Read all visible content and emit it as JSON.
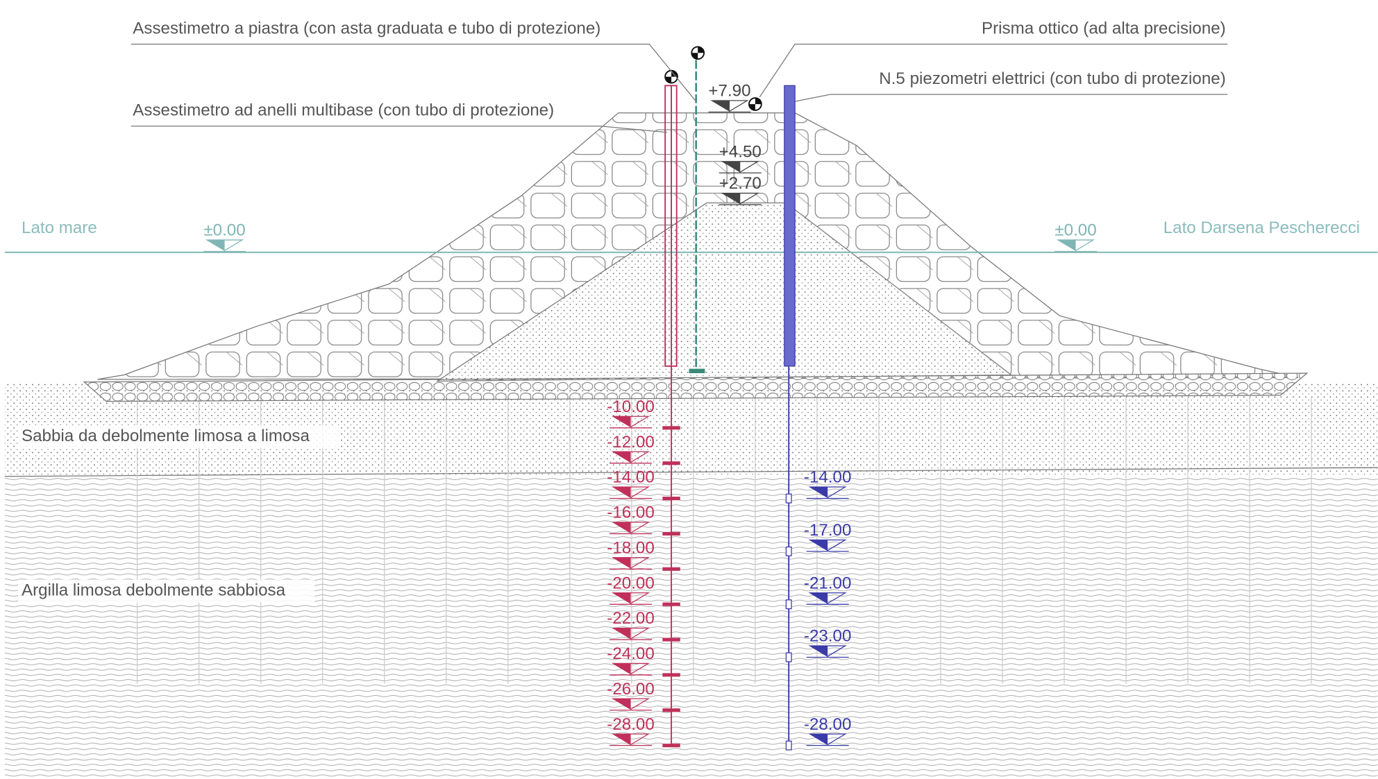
{
  "callouts": [
    "Assestimetro a piastra (con asta graduata e tubo di protezione)",
    "Assestimetro ad anelli multibase (con tubo di protezione)",
    "Prisma ottico (ad alta precisione)",
    "N.5 piezometri elettrici (con tubo di protezione)"
  ],
  "sides": [
    "Lato mare",
    "Lato Darsena Pescherecci"
  ],
  "water_levels": [
    "±0.00",
    "±0.00"
  ],
  "crest_levels": [
    "+7.90",
    "+4.50",
    "+2.70"
  ],
  "settlement_gauge_levels": [
    "-10.00",
    "-12.00",
    "-14.00",
    "-16.00",
    "-18.00",
    "-20.00",
    "-22.00",
    "-24.00",
    "-26.00",
    "-28.00"
  ],
  "piezometer_levels": [
    "-14.00",
    "-17.00",
    "-21.00",
    "-23.00",
    "-28.00"
  ],
  "soil_layers": [
    "Sabbia da debolmente limosa a limosa",
    "Argilla limosa debolmente sabbiosa"
  ]
}
